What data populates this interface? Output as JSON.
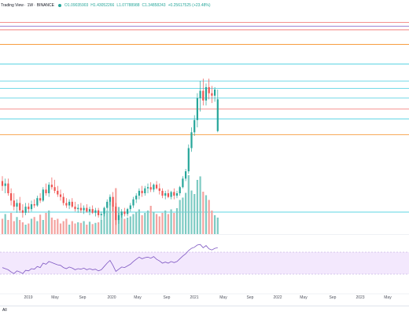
{
  "header": {
    "symbol": "Trading View",
    "interval": "1W",
    "exchange": "BINANCE",
    "open_label": "O1.09035903",
    "high_label": "H1.43052266",
    "low_label": "L1.07788988",
    "close_label": "C1.34858243",
    "change_label": "+0.25617525 (+23.48%)"
  },
  "x_axis": {
    "labels": [
      "2019",
      "May",
      "Sep",
      "2020",
      "May",
      "Sep",
      "2021",
      "May",
      "Sep",
      "2022",
      "May",
      "Sep",
      "2023",
      "May"
    ]
  },
  "bottom_bar": {
    "range_label": "All"
  },
  "colors": {
    "up": "#26a69a",
    "down": "#ef5350",
    "vol_up": "#7ecbc3",
    "vol_down": "#f4a3a0",
    "rsi_line": "#7e57c2",
    "rsi_fill": "#f3e8fd",
    "hline_blue": "#26c6da",
    "hline_orange": "#f57c00",
    "hline_red": "#ef5350"
  },
  "chart_data": {
    "type": "candlestick",
    "candles": [
      [
        0.68,
        0.72,
        0.6,
        0.64
      ],
      [
        0.64,
        0.7,
        0.58,
        0.66
      ],
      [
        0.66,
        0.7,
        0.56,
        0.58
      ],
      [
        0.58,
        0.62,
        0.48,
        0.52
      ],
      [
        0.52,
        0.58,
        0.44,
        0.47
      ],
      [
        0.47,
        0.53,
        0.42,
        0.5
      ],
      [
        0.5,
        0.55,
        0.42,
        0.44
      ],
      [
        0.44,
        0.49,
        0.38,
        0.42
      ],
      [
        0.42,
        0.5,
        0.4,
        0.47
      ],
      [
        0.47,
        0.5,
        0.42,
        0.45
      ],
      [
        0.45,
        0.52,
        0.43,
        0.49
      ],
      [
        0.49,
        0.53,
        0.46,
        0.48
      ],
      [
        0.48,
        0.56,
        0.47,
        0.54
      ],
      [
        0.54,
        0.58,
        0.5,
        0.52
      ],
      [
        0.52,
        0.63,
        0.51,
        0.61
      ],
      [
        0.61,
        0.66,
        0.56,
        0.58
      ],
      [
        0.58,
        0.67,
        0.55,
        0.65
      ],
      [
        0.65,
        0.71,
        0.61,
        0.63
      ],
      [
        0.63,
        0.69,
        0.58,
        0.6
      ],
      [
        0.6,
        0.64,
        0.55,
        0.57
      ],
      [
        0.57,
        0.61,
        0.52,
        0.55
      ],
      [
        0.55,
        0.58,
        0.48,
        0.5
      ],
      [
        0.5,
        0.54,
        0.46,
        0.48
      ],
      [
        0.48,
        0.53,
        0.45,
        0.51
      ],
      [
        0.51,
        0.54,
        0.46,
        0.47
      ],
      [
        0.47,
        0.51,
        0.43,
        0.45
      ],
      [
        0.45,
        0.49,
        0.42,
        0.46
      ],
      [
        0.46,
        0.5,
        0.42,
        0.44
      ],
      [
        0.44,
        0.48,
        0.41,
        0.46
      ],
      [
        0.46,
        0.49,
        0.42,
        0.43
      ],
      [
        0.43,
        0.47,
        0.4,
        0.45
      ],
      [
        0.45,
        0.48,
        0.41,
        0.42
      ],
      [
        0.42,
        0.46,
        0.39,
        0.44
      ],
      [
        0.44,
        0.46,
        0.38,
        0.4
      ],
      [
        0.4,
        0.43,
        0.36,
        0.41
      ],
      [
        0.41,
        0.47,
        0.39,
        0.46
      ],
      [
        0.46,
        0.53,
        0.44,
        0.51
      ],
      [
        0.51,
        0.57,
        0.48,
        0.55
      ],
      [
        0.55,
        0.59,
        0.43,
        0.47
      ],
      [
        0.47,
        0.5,
        0.32,
        0.36
      ],
      [
        0.36,
        0.42,
        0.33,
        0.4
      ],
      [
        0.4,
        0.45,
        0.38,
        0.43
      ],
      [
        0.43,
        0.46,
        0.39,
        0.41
      ],
      [
        0.41,
        0.46,
        0.39,
        0.45
      ],
      [
        0.45,
        0.5,
        0.43,
        0.48
      ],
      [
        0.48,
        0.55,
        0.46,
        0.53
      ],
      [
        0.53,
        0.58,
        0.5,
        0.56
      ],
      [
        0.56,
        0.62,
        0.53,
        0.6
      ],
      [
        0.6,
        0.64,
        0.55,
        0.58
      ],
      [
        0.58,
        0.64,
        0.56,
        0.62
      ],
      [
        0.62,
        0.66,
        0.58,
        0.63
      ],
      [
        0.63,
        0.67,
        0.59,
        0.61
      ],
      [
        0.61,
        0.66,
        0.59,
        0.65
      ],
      [
        0.65,
        0.68,
        0.61,
        0.62
      ],
      [
        0.62,
        0.66,
        0.57,
        0.6
      ],
      [
        0.6,
        0.62,
        0.54,
        0.56
      ],
      [
        0.56,
        0.6,
        0.53,
        0.58
      ],
      [
        0.58,
        0.61,
        0.54,
        0.55
      ],
      [
        0.55,
        0.6,
        0.53,
        0.59
      ],
      [
        0.59,
        0.62,
        0.53,
        0.56
      ],
      [
        0.56,
        0.6,
        0.54,
        0.58
      ],
      [
        0.58,
        0.64,
        0.56,
        0.63
      ],
      [
        0.63,
        0.72,
        0.62,
        0.7
      ],
      [
        0.7,
        0.78,
        0.68,
        0.76
      ],
      [
        0.76,
        0.98,
        0.74,
        0.95
      ],
      [
        0.95,
        1.12,
        0.92,
        1.08
      ],
      [
        1.08,
        1.22,
        1.05,
        1.18
      ],
      [
        1.18,
        1.4,
        1.12,
        1.36
      ],
      [
        1.36,
        1.5,
        1.25,
        1.42
      ],
      [
        1.42,
        1.52,
        1.3,
        1.34
      ],
      [
        1.34,
        1.48,
        1.3,
        1.45
      ],
      [
        1.45,
        1.52,
        1.35,
        1.4
      ],
      [
        1.4,
        1.46,
        1.32,
        1.38
      ],
      [
        1.38,
        1.45,
        1.33,
        1.43
      ],
      [
        1.09,
        1.43,
        1.08,
        1.35
      ]
    ],
    "volume": [
      0.26,
      0.34,
      0.24,
      0.36,
      0.22,
      0.29,
      0.24,
      0.2,
      0.16,
      0.18,
      0.26,
      0.29,
      0.22,
      0.33,
      0.24,
      0.36,
      0.4,
      0.28,
      0.24,
      0.26,
      0.18,
      0.22,
      0.26,
      0.16,
      0.22,
      0.18,
      0.2,
      0.19,
      0.22,
      0.16,
      0.21,
      0.17,
      0.19,
      0.2,
      0.24,
      0.34,
      0.4,
      0.55,
      0.48,
      0.78,
      0.46,
      0.34,
      0.26,
      0.28,
      0.3,
      0.34,
      0.38,
      0.42,
      0.32,
      0.36,
      0.4,
      0.48,
      0.38,
      0.34,
      0.3,
      0.36,
      0.4,
      0.34,
      0.42,
      0.36,
      0.44,
      0.58,
      0.62,
      0.7,
      1.0,
      0.74,
      0.68,
      0.92,
      0.98,
      0.72,
      0.66,
      0.58,
      0.4,
      0.32,
      0.28
    ],
    "rsi": [
      42,
      40,
      38,
      34,
      31,
      36,
      34,
      31,
      37,
      36,
      40,
      39,
      44,
      42,
      50,
      48,
      53,
      51,
      49,
      47,
      46,
      42,
      40,
      43,
      41,
      38,
      40,
      39,
      41,
      38,
      40,
      38,
      39,
      36,
      38,
      44,
      50,
      55,
      46,
      35,
      39,
      43,
      42,
      45,
      48,
      53,
      57,
      61,
      58,
      60,
      61,
      59,
      62,
      57,
      54,
      50,
      52,
      50,
      53,
      51,
      53,
      58,
      63,
      67,
      73,
      77,
      79,
      83,
      84,
      78,
      82,
      76,
      74,
      77,
      78
    ],
    "hlines": [
      {
        "price": 1.98,
        "color": "#ef5350"
      },
      {
        "price": 1.95,
        "color": "#7e57c2"
      },
      {
        "price": 1.92,
        "color": "#ef5350"
      },
      {
        "price": 1.8,
        "color": "#f57c00"
      },
      {
        "price": 1.64,
        "color": "#26c6da"
      },
      {
        "price": 1.5,
        "color": "#26c6da"
      },
      {
        "price": 1.44,
        "color": "#26c6da"
      },
      {
        "price": 1.36,
        "color": "#26c6da"
      },
      {
        "price": 1.27,
        "color": "#ef5350"
      },
      {
        "price": 1.19,
        "color": "#26c6da"
      },
      {
        "price": 1.06,
        "color": "#f57c00"
      }
    ],
    "volume_line": 0.38,
    "rsi_levels": [
      70,
      30
    ]
  }
}
